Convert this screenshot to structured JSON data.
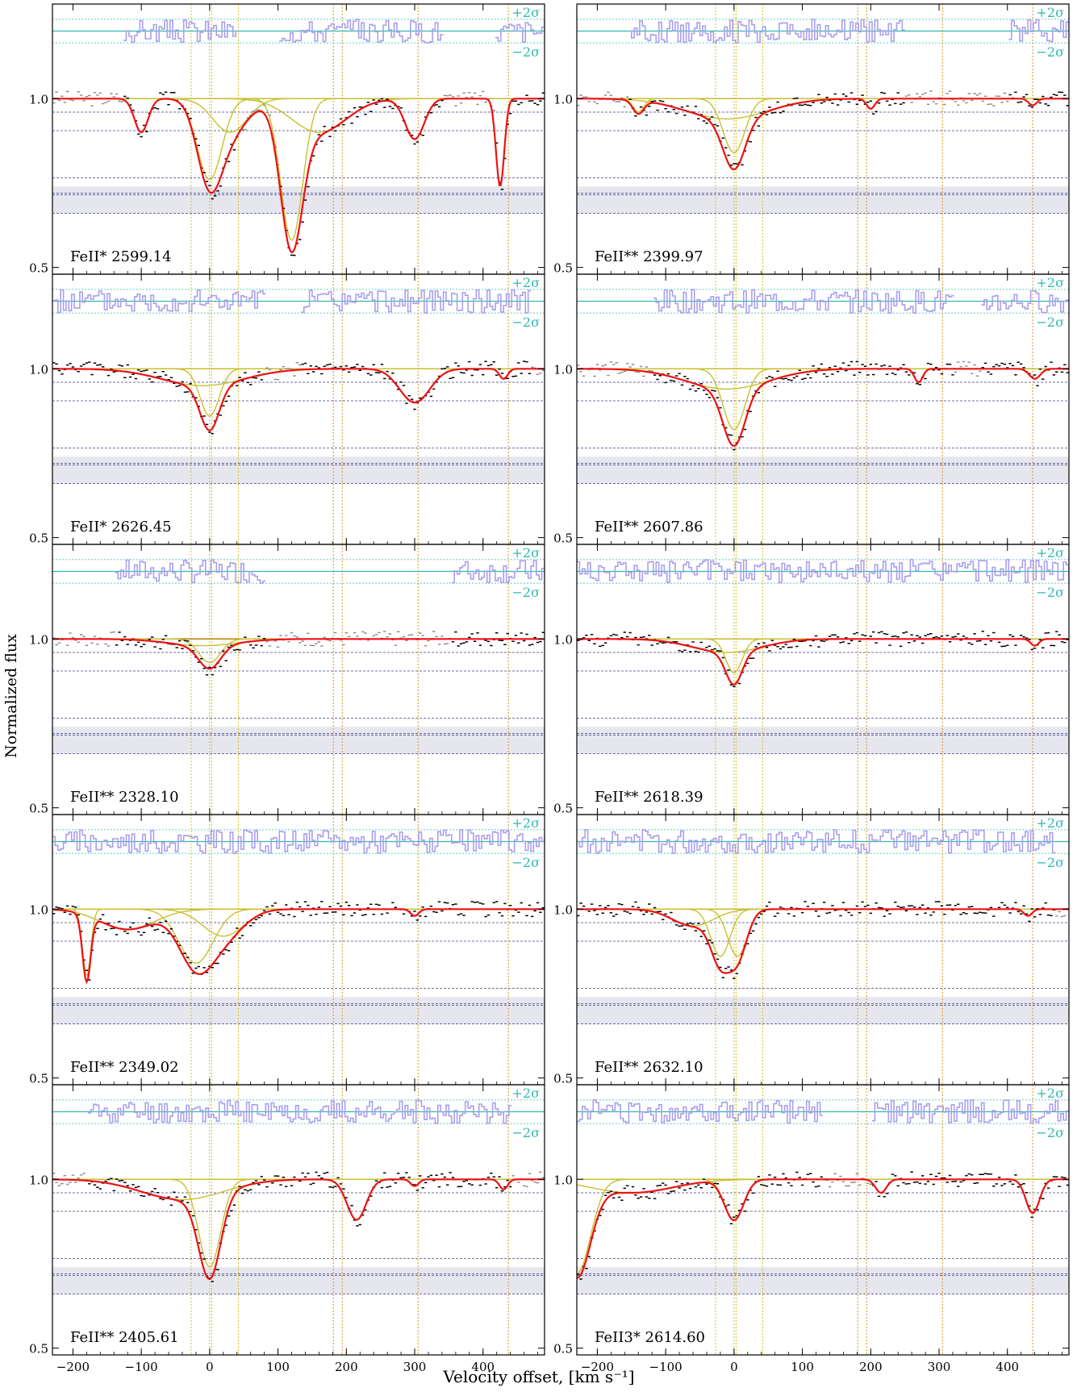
{
  "figure": {
    "ylabel": "Normalized flux",
    "xlabel": "Velocity offset, [km s⁻¹]",
    "sigma_plus": "+2σ",
    "sigma_minus": "−2σ"
  },
  "colors": {
    "data": "#000000",
    "masked": "#888888",
    "fit": "#ee1111",
    "components": "#c8c030",
    "comp_fill": "#e8c870",
    "residual": "#a9a0ec",
    "sigma": "#30b8b0",
    "vline_yellow": "#d8c020",
    "vline_orange": "#e0901a",
    "hline": "#404080",
    "band": "#dcdce8"
  },
  "chart_data": {
    "type": "line",
    "layout": "5 rows x 2 columns of stacked absorption-line panels sharing x axis",
    "xlim": [
      -230,
      490
    ],
    "ylim": [
      0.48,
      1.28
    ],
    "xticks": [
      -200,
      -100,
      0,
      100,
      200,
      300,
      400
    ],
    "yticks": [
      0.5,
      1.0
    ],
    "vlines_yellow": [
      -27,
      0,
      3,
      42
    ],
    "vlines_orange": [
      181,
      194,
      305,
      437
    ],
    "panels": [
      {
        "label": "FeII* 2599.14",
        "absorptions": [
          {
            "v": -100,
            "depth": 0.1,
            "w": 10
          },
          {
            "v": 0,
            "depth": 0.24,
            "w": 18
          },
          {
            "v": 30,
            "depth": 0.1,
            "w": 25
          },
          {
            "v": 120,
            "depth": 0.42,
            "w": 16
          },
          {
            "v": 160,
            "depth": 0.1,
            "w": 40
          },
          {
            "v": 300,
            "depth": 0.12,
            "w": 14
          },
          {
            "v": 425,
            "depth": 0.26,
            "w": 6
          }
        ],
        "masked": [
          [
            -230,
            -130
          ],
          [
            40,
            100
          ],
          [
            340,
            415
          ]
        ]
      },
      {
        "label": "FeII** 2399.97",
        "absorptions": [
          {
            "v": -140,
            "depth": 0.04,
            "w": 8
          },
          {
            "v": -10,
            "depth": 0.06,
            "w": 60
          },
          {
            "v": 0,
            "depth": 0.16,
            "w": 16
          },
          {
            "v": 200,
            "depth": 0.03,
            "w": 6
          },
          {
            "v": 437,
            "depth": 0.02,
            "w": 6
          }
        ],
        "masked": [
          [
            -230,
            -155
          ],
          [
            250,
            400
          ]
        ]
      },
      {
        "label": "FeII* 2626.45",
        "absorptions": [
          {
            "v": -10,
            "depth": 0.05,
            "w": 60
          },
          {
            "v": 0,
            "depth": 0.14,
            "w": 14
          },
          {
            "v": 300,
            "depth": 0.1,
            "w": 22
          },
          {
            "v": 430,
            "depth": 0.03,
            "w": 6
          }
        ],
        "masked": [
          [
            80,
            130
          ],
          [
            470,
            490
          ]
        ]
      },
      {
        "label": "FeII** 2607.86",
        "absorptions": [
          {
            "v": -10,
            "depth": 0.06,
            "w": 60
          },
          {
            "v": 0,
            "depth": 0.18,
            "w": 16
          },
          {
            "v": 270,
            "depth": 0.04,
            "w": 6
          },
          {
            "v": 440,
            "depth": 0.03,
            "w": 8
          }
        ],
        "masked": [
          [
            -230,
            -120
          ],
          [
            320,
            360
          ]
        ]
      },
      {
        "label": "FeII** 2328.10",
        "absorptions": [
          {
            "v": 0,
            "depth": 0.07,
            "w": 16
          },
          {
            "v": -10,
            "depth": 0.02,
            "w": 50
          }
        ],
        "masked": [
          [
            -230,
            -140
          ],
          [
            80,
            350
          ]
        ]
      },
      {
        "label": "FeII** 2618.39",
        "absorptions": [
          {
            "v": -10,
            "depth": 0.04,
            "w": 50
          },
          {
            "v": 0,
            "depth": 0.1,
            "w": 12
          },
          {
            "v": 440,
            "depth": 0.02,
            "w": 6
          }
        ],
        "masked": []
      },
      {
        "label": "FeII** 2349.02",
        "absorptions": [
          {
            "v": -180,
            "depth": 0.2,
            "w": 6
          },
          {
            "v": -120,
            "depth": 0.06,
            "w": 40
          },
          {
            "v": -20,
            "depth": 0.16,
            "w": 25
          },
          {
            "v": 20,
            "depth": 0.08,
            "w": 30
          },
          {
            "v": 300,
            "depth": 0.02,
            "w": 6
          }
        ],
        "masked": []
      },
      {
        "label": "FeII** 2632.10",
        "absorptions": [
          {
            "v": -60,
            "depth": 0.05,
            "w": 30
          },
          {
            "v": -20,
            "depth": 0.14,
            "w": 14
          },
          {
            "v": 5,
            "depth": 0.14,
            "w": 14
          },
          {
            "v": 430,
            "depth": 0.02,
            "w": 6
          }
        ],
        "masked": [
          [
            470,
            490
          ]
        ]
      },
      {
        "label": "FeII** 2405.61",
        "absorptions": [
          {
            "v": -40,
            "depth": 0.06,
            "w": 60
          },
          {
            "v": 0,
            "depth": 0.26,
            "w": 16
          },
          {
            "v": 215,
            "depth": 0.12,
            "w": 14
          },
          {
            "v": 300,
            "depth": 0.02,
            "w": 6
          },
          {
            "v": 430,
            "depth": 0.03,
            "w": 6
          }
        ],
        "masked": [
          [
            -230,
            -180
          ],
          [
            440,
            490
          ]
        ]
      },
      {
        "label": "FeII3* 2614.60",
        "absorptions": [
          {
            "v": -230,
            "depth": 0.28,
            "w": 20
          },
          {
            "v": -150,
            "depth": 0.04,
            "w": 60
          },
          {
            "v": 0,
            "depth": 0.12,
            "w": 14
          },
          {
            "v": 215,
            "depth": 0.04,
            "w": 8
          },
          {
            "v": 437,
            "depth": 0.1,
            "w": 10
          }
        ],
        "masked": [
          [
            130,
            200
          ]
        ]
      }
    ]
  }
}
